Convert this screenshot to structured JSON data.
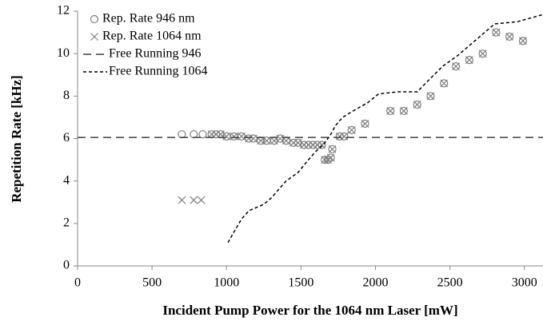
{
  "chart_data": {
    "type": "scatter-line",
    "x_label": "Incident Pump Power for the 1064 nm Laser [mW]",
    "y_label": "Repetition Rate [kHz]",
    "xlim": [
      0,
      3130
    ],
    "ylim": [
      0,
      12
    ],
    "xticks": [
      0,
      500,
      1000,
      1500,
      2000,
      2500,
      3000
    ],
    "yticks": [
      0,
      2,
      4,
      6,
      8,
      10,
      12
    ],
    "grid": false,
    "legend": "upper left",
    "series": [
      {
        "name": "Rep. Rate 946 nm",
        "color": "#7f7f7f",
        "marker": "circle",
        "x": [
          700,
          780,
          840,
          900,
          930,
          960,
          1000,
          1050,
          1100,
          1150,
          1180,
          1230,
          1270,
          1320,
          1360,
          1400,
          1450,
          1480,
          1520,
          1550,
          1580,
          1610,
          1640,
          1660,
          1680,
          1700,
          1710,
          1760,
          1790,
          1840,
          1930,
          2100,
          2190,
          2280,
          2370,
          2460,
          2540,
          2630,
          2720,
          2810,
          2900,
          2990
        ],
        "values": [
          6.2,
          6.2,
          6.2,
          6.2,
          6.2,
          6.2,
          6.1,
          6.1,
          6.1,
          6.0,
          6.0,
          5.9,
          5.9,
          5.9,
          6.0,
          5.9,
          5.8,
          5.8,
          5.7,
          5.7,
          5.7,
          5.7,
          5.7,
          5.0,
          5.0,
          5.1,
          5.5,
          6.1,
          6.1,
          6.4,
          6.7,
          7.3,
          7.3,
          7.6,
          8.0,
          8.6,
          9.4,
          9.7,
          10.0,
          11.0,
          10.8,
          10.6
        ]
      },
      {
        "name": "Rep. Rate 1064 nm",
        "color": "#7f7f7f",
        "marker": "x",
        "x": [
          700,
          780,
          830,
          900,
          930,
          960,
          1000,
          1050,
          1100,
          1150,
          1180,
          1230,
          1270,
          1320,
          1360,
          1400,
          1450,
          1480,
          1520,
          1550,
          1580,
          1610,
          1640,
          1660,
          1680,
          1700,
          1710,
          1760,
          1790,
          1840,
          1930,
          2100,
          2190,
          2280,
          2370,
          2460,
          2540,
          2630,
          2720,
          2810,
          2900,
          2990
        ],
        "values": [
          3.1,
          3.1,
          3.1,
          6.2,
          6.2,
          6.2,
          6.1,
          6.1,
          6.1,
          6.0,
          6.0,
          5.9,
          5.9,
          5.9,
          6.0,
          5.9,
          5.8,
          5.8,
          5.7,
          5.7,
          5.7,
          5.7,
          5.7,
          5.0,
          5.0,
          5.1,
          5.5,
          6.1,
          6.1,
          6.4,
          6.7,
          7.3,
          7.3,
          7.6,
          8.0,
          8.6,
          9.4,
          9.7,
          10.0,
          11.0,
          10.8,
          10.6
        ]
      },
      {
        "name": "Free Running 946",
        "color": "#404040",
        "dash": "10 6",
        "x": [
          0,
          3130
        ],
        "values": [
          6.05,
          6.05
        ]
      },
      {
        "name": "Free Running 1064",
        "color": "#000000",
        "dash": "4 3",
        "x": [
          1010,
          1050,
          1100,
          1150,
          1250,
          1300,
          1350,
          1400,
          1480,
          1550,
          1600,
          1650,
          1700,
          1730,
          1780,
          1850,
          1950,
          2020,
          2150,
          2280,
          2350,
          2450,
          2550,
          2650,
          2750,
          2800,
          2950,
          3130
        ],
        "values": [
          1.1,
          1.6,
          2.2,
          2.6,
          2.9,
          3.2,
          3.6,
          4.0,
          4.4,
          5.0,
          5.4,
          5.7,
          6.2,
          6.6,
          7.0,
          7.3,
          7.7,
          8.1,
          8.2,
          8.2,
          8.7,
          9.4,
          9.9,
          10.5,
          11.1,
          11.4,
          11.5,
          11.85
        ]
      }
    ]
  }
}
